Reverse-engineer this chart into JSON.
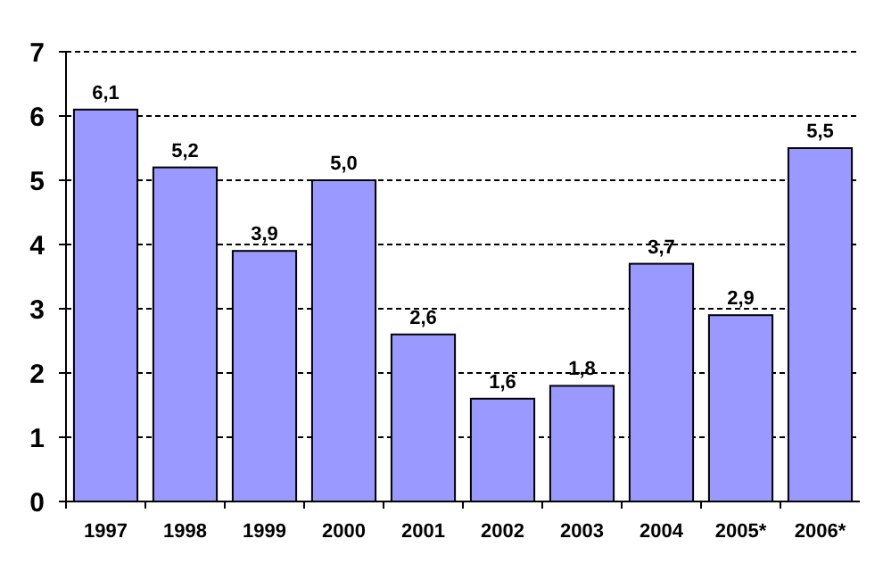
{
  "chart_data": {
    "type": "bar",
    "categories": [
      "1997",
      "1998",
      "1999",
      "2000",
      "2001",
      "2002",
      "2003",
      "2004",
      "2005*",
      "2006*"
    ],
    "values": [
      6.1,
      5.2,
      3.9,
      5.0,
      2.6,
      1.6,
      1.8,
      3.7,
      2.9,
      5.5
    ],
    "value_labels": [
      "6,1",
      "5,2",
      "3,9",
      "5,0",
      "2,6",
      "1,6",
      "1,8",
      "3,7",
      "2,9",
      "5,5"
    ],
    "color": "#9999ff",
    "ylim": [
      0,
      7
    ],
    "yticks": [
      0,
      1,
      2,
      3,
      4,
      5,
      6,
      7
    ],
    "grid": "y"
  }
}
